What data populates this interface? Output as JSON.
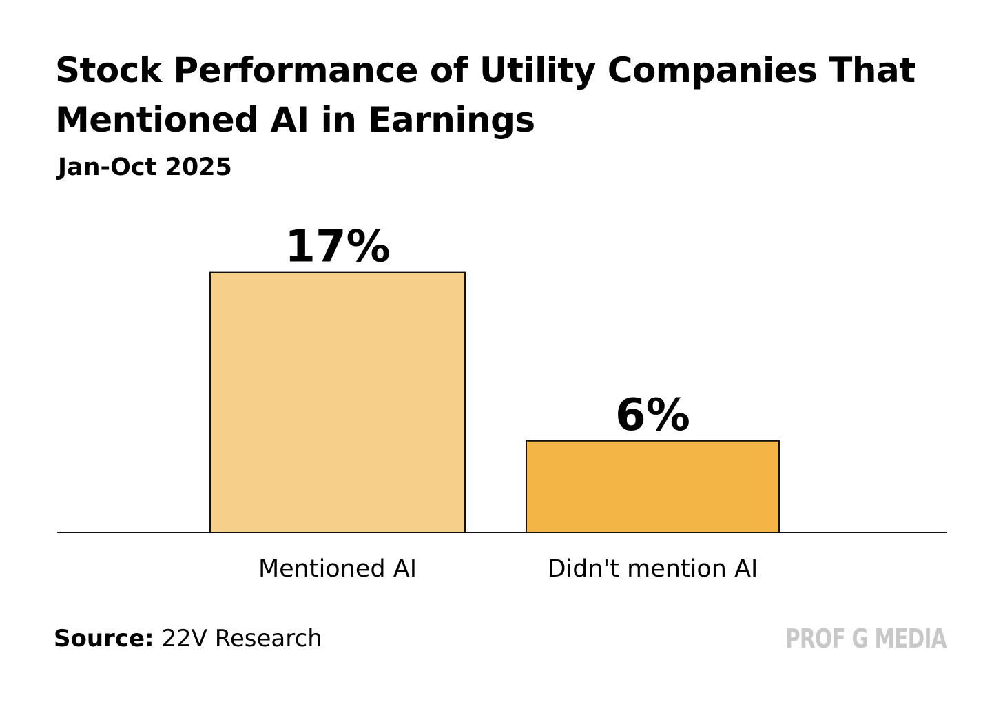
{
  "chart_data": {
    "type": "bar",
    "title": "Stock Performance of Utility Companies That Mentioned AI in Earnings",
    "subtitle": "Jan-Oct 2025",
    "categories": [
      "Mentioned AI",
      "Didn't mention AI"
    ],
    "values": [
      17,
      6
    ],
    "value_labels": [
      "17%",
      "6%"
    ],
    "value_unit": "%",
    "colors": [
      "#f6d08a",
      "#f3b545"
    ],
    "ylim": [
      0,
      20
    ],
    "grid": false,
    "legend": "none",
    "xlabel": "",
    "ylabel": ""
  },
  "footer": {
    "source_label": "Source:",
    "source_text": "22V Research",
    "brand": "PROF G MEDIA"
  }
}
